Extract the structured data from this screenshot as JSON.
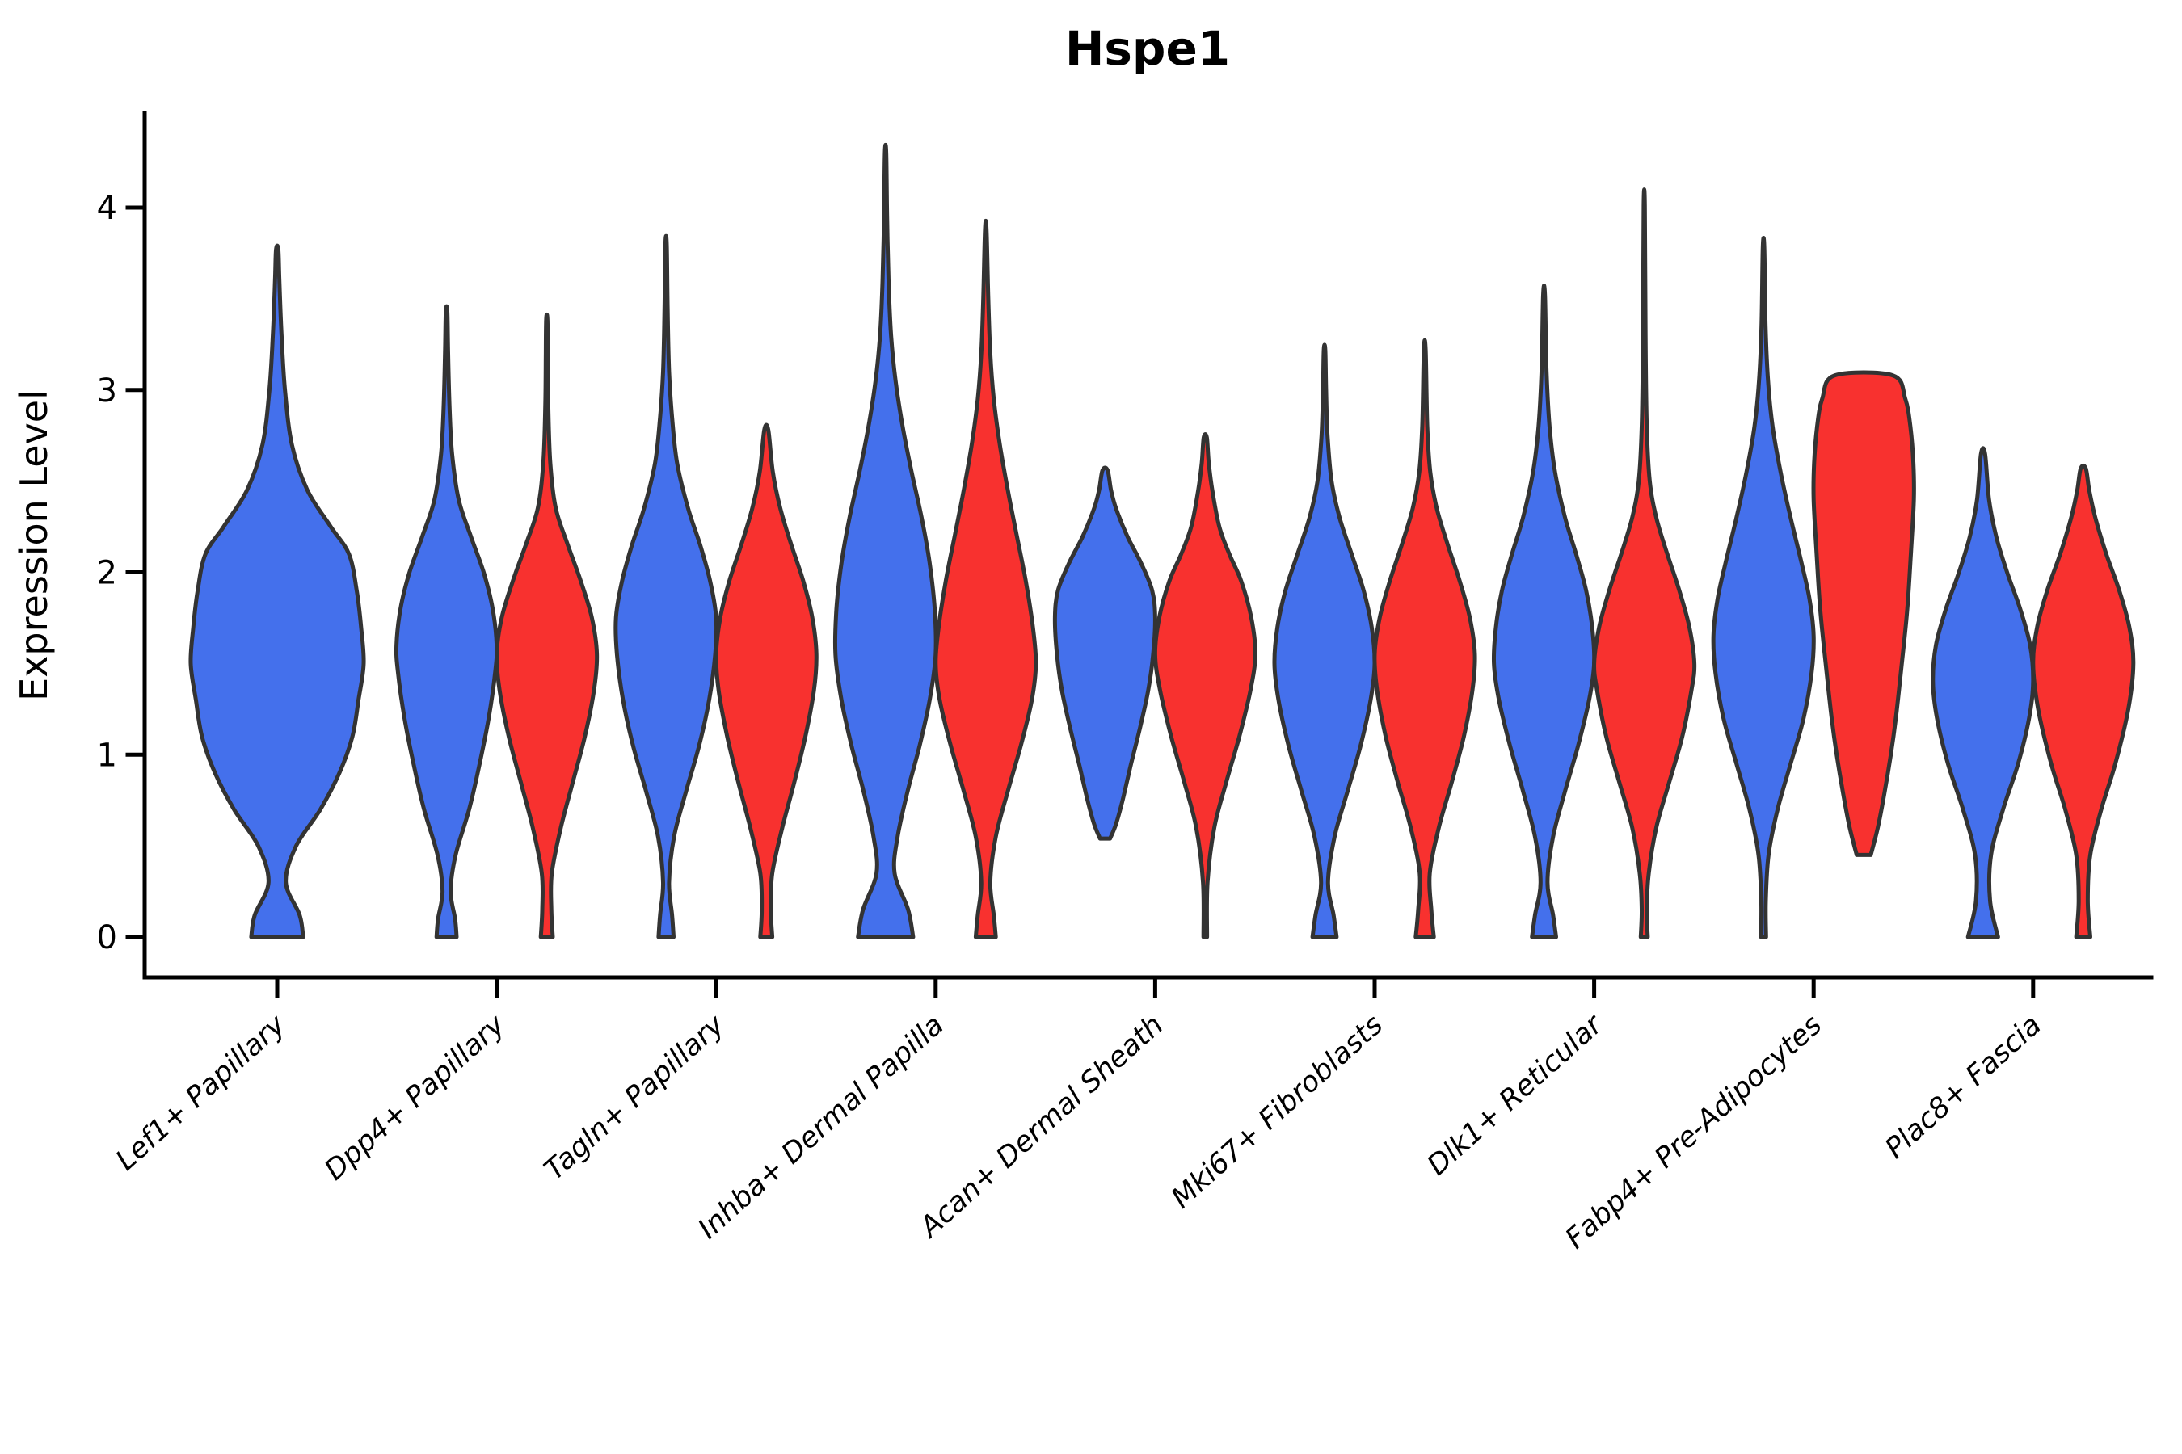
{
  "title": "Hspe1",
  "ylabel": "Expression Level",
  "colors": {
    "blue": "#4470EC",
    "red": "#F8312F",
    "violin_stroke": "#333333",
    "axis": "#000000"
  },
  "chart_data": {
    "type": "violin",
    "title": "Hspe1",
    "xlabel": "",
    "ylabel": "Expression Level",
    "ylim": [
      -0.22,
      4.52
    ],
    "yticks": [
      "0",
      "1",
      "2",
      "3",
      "4"
    ],
    "grid": "off",
    "legend": "none",
    "categories": [
      "Lef1+ Papillary",
      "Dpp4+ Papillary",
      "Tagln+ Papillary",
      "Inhba+ Dermal Papilla",
      "Acan+ Dermal Sheath",
      "Mki67+ Fibroblasts",
      "Dlk1+ Reticular",
      "Fabp4+ Pre-Adipocytes",
      "Plac8+ Fascia"
    ],
    "note": "profile = [expression_value, relative_half_width]; each category has a blue and a red condition violin except Lef1+ Papillary which has blue only",
    "violins": [
      {
        "category_index": 0,
        "group": "blue",
        "position": "center",
        "max_expression": 3.77,
        "profile": [
          [
            0,
            0.3
          ],
          [
            0.12,
            0.26
          ],
          [
            0.3,
            0.1
          ],
          [
            0.5,
            0.22
          ],
          [
            0.7,
            0.5
          ],
          [
            0.9,
            0.72
          ],
          [
            1.1,
            0.87
          ],
          [
            1.3,
            0.94
          ],
          [
            1.5,
            1.0
          ],
          [
            1.7,
            0.97
          ],
          [
            1.9,
            0.92
          ],
          [
            2.1,
            0.83
          ],
          [
            2.25,
            0.62
          ],
          [
            2.45,
            0.35
          ],
          [
            2.7,
            0.17
          ],
          [
            3.0,
            0.09
          ],
          [
            3.3,
            0.05
          ],
          [
            3.6,
            0.025
          ],
          [
            3.77,
            0.013
          ]
        ]
      },
      {
        "category_index": 1,
        "group": "blue",
        "position": "left",
        "max_expression": 3.43,
        "profile": [
          [
            0,
            0.2
          ],
          [
            0.1,
            0.17
          ],
          [
            0.25,
            0.08
          ],
          [
            0.45,
            0.18
          ],
          [
            0.7,
            0.45
          ],
          [
            0.95,
            0.66
          ],
          [
            1.2,
            0.84
          ],
          [
            1.45,
            0.97
          ],
          [
            1.6,
            1.0
          ],
          [
            1.8,
            0.92
          ],
          [
            2.0,
            0.74
          ],
          [
            2.2,
            0.48
          ],
          [
            2.4,
            0.24
          ],
          [
            2.65,
            0.11
          ],
          [
            2.9,
            0.06
          ],
          [
            3.2,
            0.03
          ],
          [
            3.43,
            0.015
          ]
        ]
      },
      {
        "category_index": 1,
        "group": "red",
        "position": "right",
        "max_expression": 3.39,
        "profile": [
          [
            0,
            0.12
          ],
          [
            0.15,
            0.09
          ],
          [
            0.35,
            0.1
          ],
          [
            0.6,
            0.28
          ],
          [
            0.85,
            0.52
          ],
          [
            1.1,
            0.76
          ],
          [
            1.35,
            0.94
          ],
          [
            1.55,
            1.0
          ],
          [
            1.75,
            0.9
          ],
          [
            1.95,
            0.68
          ],
          [
            2.15,
            0.42
          ],
          [
            2.35,
            0.18
          ],
          [
            2.6,
            0.07
          ],
          [
            2.9,
            0.03
          ],
          [
            3.2,
            0.02
          ],
          [
            3.39,
            0.012
          ]
        ]
      },
      {
        "category_index": 2,
        "group": "blue",
        "position": "left",
        "max_expression": 3.8,
        "profile": [
          [
            0,
            0.15
          ],
          [
            0.12,
            0.12
          ],
          [
            0.3,
            0.06
          ],
          [
            0.55,
            0.16
          ],
          [
            0.8,
            0.4
          ],
          [
            1.05,
            0.66
          ],
          [
            1.3,
            0.86
          ],
          [
            1.55,
            0.98
          ],
          [
            1.75,
            1.0
          ],
          [
            1.95,
            0.88
          ],
          [
            2.15,
            0.68
          ],
          [
            2.35,
            0.44
          ],
          [
            2.6,
            0.22
          ],
          [
            2.85,
            0.12
          ],
          [
            3.1,
            0.06
          ],
          [
            3.45,
            0.03
          ],
          [
            3.8,
            0.013
          ]
        ]
      },
      {
        "category_index": 2,
        "group": "red",
        "position": "right",
        "max_expression": 2.78,
        "profile": [
          [
            0,
            0.12
          ],
          [
            0.15,
            0.09
          ],
          [
            0.35,
            0.12
          ],
          [
            0.6,
            0.32
          ],
          [
            0.85,
            0.56
          ],
          [
            1.1,
            0.78
          ],
          [
            1.35,
            0.95
          ],
          [
            1.55,
            1.0
          ],
          [
            1.75,
            0.92
          ],
          [
            1.95,
            0.74
          ],
          [
            2.15,
            0.5
          ],
          [
            2.35,
            0.28
          ],
          [
            2.55,
            0.13
          ],
          [
            2.78,
            0.04
          ]
        ]
      },
      {
        "category_index": 3,
        "group": "blue",
        "position": "left",
        "max_expression": 4.3,
        "profile": [
          [
            0,
            0.55
          ],
          [
            0.15,
            0.45
          ],
          [
            0.35,
            0.18
          ],
          [
            0.55,
            0.24
          ],
          [
            0.8,
            0.44
          ],
          [
            1.05,
            0.68
          ],
          [
            1.3,
            0.88
          ],
          [
            1.55,
            1.0
          ],
          [
            1.8,
            0.98
          ],
          [
            2.05,
            0.88
          ],
          [
            2.3,
            0.72
          ],
          [
            2.55,
            0.52
          ],
          [
            2.8,
            0.34
          ],
          [
            3.05,
            0.2
          ],
          [
            3.3,
            0.11
          ],
          [
            3.6,
            0.06
          ],
          [
            3.95,
            0.03
          ],
          [
            4.3,
            0.013
          ]
        ]
      },
      {
        "category_index": 3,
        "group": "red",
        "position": "right",
        "max_expression": 3.88,
        "profile": [
          [
            0,
            0.2
          ],
          [
            0.12,
            0.16
          ],
          [
            0.3,
            0.09
          ],
          [
            0.55,
            0.2
          ],
          [
            0.8,
            0.44
          ],
          [
            1.05,
            0.7
          ],
          [
            1.3,
            0.92
          ],
          [
            1.5,
            1.0
          ],
          [
            1.7,
            0.94
          ],
          [
            1.95,
            0.8
          ],
          [
            2.2,
            0.62
          ],
          [
            2.45,
            0.44
          ],
          [
            2.7,
            0.28
          ],
          [
            2.95,
            0.16
          ],
          [
            3.2,
            0.09
          ],
          [
            3.5,
            0.05
          ],
          [
            3.88,
            0.015
          ]
        ]
      },
      {
        "category_index": 4,
        "group": "blue",
        "position": "left",
        "min_expression": 0.54,
        "max_expression": 2.56,
        "profile": [
          [
            0.54,
            0.1
          ],
          [
            0.62,
            0.22
          ],
          [
            0.75,
            0.35
          ],
          [
            0.95,
            0.52
          ],
          [
            1.15,
            0.7
          ],
          [
            1.35,
            0.86
          ],
          [
            1.55,
            0.96
          ],
          [
            1.75,
            1.0
          ],
          [
            1.9,
            0.94
          ],
          [
            2.05,
            0.72
          ],
          [
            2.2,
            0.44
          ],
          [
            2.35,
            0.22
          ],
          [
            2.45,
            0.12
          ],
          [
            2.56,
            0.05
          ]
        ]
      },
      {
        "category_index": 4,
        "group": "red",
        "position": "right",
        "max_expression": 2.74,
        "profile": [
          [
            0,
            0.035
          ],
          [
            0.3,
            0.045
          ],
          [
            0.6,
            0.18
          ],
          [
            0.85,
            0.42
          ],
          [
            1.1,
            0.68
          ],
          [
            1.35,
            0.9
          ],
          [
            1.55,
            1.0
          ],
          [
            1.75,
            0.92
          ],
          [
            1.95,
            0.72
          ],
          [
            2.1,
            0.48
          ],
          [
            2.25,
            0.28
          ],
          [
            2.45,
            0.14
          ],
          [
            2.6,
            0.07
          ],
          [
            2.74,
            0.03
          ]
        ]
      },
      {
        "category_index": 5,
        "group": "blue",
        "position": "left",
        "max_expression": 3.22,
        "profile": [
          [
            0,
            0.24
          ],
          [
            0.12,
            0.18
          ],
          [
            0.3,
            0.07
          ],
          [
            0.55,
            0.2
          ],
          [
            0.8,
            0.46
          ],
          [
            1.05,
            0.72
          ],
          [
            1.3,
            0.92
          ],
          [
            1.5,
            1.0
          ],
          [
            1.7,
            0.94
          ],
          [
            1.9,
            0.78
          ],
          [
            2.1,
            0.54
          ],
          [
            2.3,
            0.3
          ],
          [
            2.5,
            0.14
          ],
          [
            2.75,
            0.06
          ],
          [
            3.0,
            0.03
          ],
          [
            3.22,
            0.015
          ]
        ]
      },
      {
        "category_index": 5,
        "group": "red",
        "position": "right",
        "max_expression": 3.22,
        "profile": [
          [
            0,
            0.18
          ],
          [
            0.15,
            0.13
          ],
          [
            0.35,
            0.1
          ],
          [
            0.6,
            0.28
          ],
          [
            0.85,
            0.54
          ],
          [
            1.1,
            0.78
          ],
          [
            1.35,
            0.95
          ],
          [
            1.55,
            1.0
          ],
          [
            1.75,
            0.9
          ],
          [
            1.95,
            0.7
          ],
          [
            2.15,
            0.46
          ],
          [
            2.35,
            0.24
          ],
          [
            2.55,
            0.11
          ],
          [
            2.8,
            0.05
          ],
          [
            3.22,
            0.018
          ]
        ]
      },
      {
        "category_index": 6,
        "group": "blue",
        "position": "left",
        "max_expression": 3.52,
        "profile": [
          [
            0,
            0.24
          ],
          [
            0.12,
            0.18
          ],
          [
            0.3,
            0.07
          ],
          [
            0.55,
            0.18
          ],
          [
            0.8,
            0.42
          ],
          [
            1.05,
            0.68
          ],
          [
            1.3,
            0.9
          ],
          [
            1.5,
            1.0
          ],
          [
            1.7,
            0.96
          ],
          [
            1.9,
            0.84
          ],
          [
            2.1,
            0.64
          ],
          [
            2.3,
            0.42
          ],
          [
            2.55,
            0.22
          ],
          [
            2.8,
            0.11
          ],
          [
            3.1,
            0.05
          ],
          [
            3.52,
            0.018
          ]
        ]
      },
      {
        "category_index": 6,
        "group": "red",
        "position": "right",
        "max_expression": 4.01,
        "profile": [
          [
            0,
            0.07
          ],
          [
            0.15,
            0.05
          ],
          [
            0.35,
            0.09
          ],
          [
            0.6,
            0.24
          ],
          [
            0.85,
            0.5
          ],
          [
            1.1,
            0.76
          ],
          [
            1.35,
            0.94
          ],
          [
            1.5,
            1.0
          ],
          [
            1.7,
            0.9
          ],
          [
            1.9,
            0.7
          ],
          [
            2.1,
            0.46
          ],
          [
            2.3,
            0.24
          ],
          [
            2.5,
            0.11
          ],
          [
            2.8,
            0.05
          ],
          [
            3.3,
            0.025
          ],
          [
            4.01,
            0.012
          ]
        ]
      },
      {
        "category_index": 7,
        "group": "blue",
        "position": "left",
        "max_expression": 3.78,
        "profile": [
          [
            0,
            0.05
          ],
          [
            0.2,
            0.045
          ],
          [
            0.45,
            0.1
          ],
          [
            0.7,
            0.28
          ],
          [
            0.95,
            0.54
          ],
          [
            1.2,
            0.8
          ],
          [
            1.45,
            0.96
          ],
          [
            1.65,
            1.0
          ],
          [
            1.85,
            0.92
          ],
          [
            2.05,
            0.76
          ],
          [
            2.3,
            0.54
          ],
          [
            2.55,
            0.34
          ],
          [
            2.8,
            0.18
          ],
          [
            3.05,
            0.09
          ],
          [
            3.35,
            0.04
          ],
          [
            3.78,
            0.015
          ]
        ]
      },
      {
        "category_index": 7,
        "group": "red",
        "position": "right",
        "min_expression": 0.45,
        "max_expression": 3.08,
        "flat_top": true,
        "profile": [
          [
            0.45,
            0.14
          ],
          [
            0.6,
            0.28
          ],
          [
            0.8,
            0.42
          ],
          [
            1.0,
            0.54
          ],
          [
            1.2,
            0.64
          ],
          [
            1.5,
            0.76
          ],
          [
            1.8,
            0.87
          ],
          [
            2.1,
            0.94
          ],
          [
            2.4,
            1.0
          ],
          [
            2.6,
            0.99
          ],
          [
            2.8,
            0.93
          ],
          [
            2.95,
            0.83
          ],
          [
            3.08,
            0.58
          ]
        ]
      },
      {
        "category_index": 8,
        "group": "blue",
        "position": "left",
        "max_expression": 2.65,
        "profile": [
          [
            0,
            0.3
          ],
          [
            0.2,
            0.14
          ],
          [
            0.45,
            0.16
          ],
          [
            0.7,
            0.4
          ],
          [
            0.95,
            0.7
          ],
          [
            1.2,
            0.92
          ],
          [
            1.4,
            1.0
          ],
          [
            1.6,
            0.94
          ],
          [
            1.8,
            0.74
          ],
          [
            2.0,
            0.48
          ],
          [
            2.2,
            0.26
          ],
          [
            2.4,
            0.12
          ],
          [
            2.65,
            0.04
          ]
        ]
      },
      {
        "category_index": 8,
        "group": "red",
        "position": "right",
        "max_expression": 2.57,
        "profile": [
          [
            0,
            0.14
          ],
          [
            0.2,
            0.09
          ],
          [
            0.45,
            0.14
          ],
          [
            0.7,
            0.36
          ],
          [
            0.95,
            0.64
          ],
          [
            1.25,
            0.9
          ],
          [
            1.5,
            1.0
          ],
          [
            1.7,
            0.92
          ],
          [
            1.9,
            0.72
          ],
          [
            2.1,
            0.46
          ],
          [
            2.3,
            0.24
          ],
          [
            2.45,
            0.12
          ],
          [
            2.57,
            0.05
          ]
        ]
      }
    ]
  }
}
